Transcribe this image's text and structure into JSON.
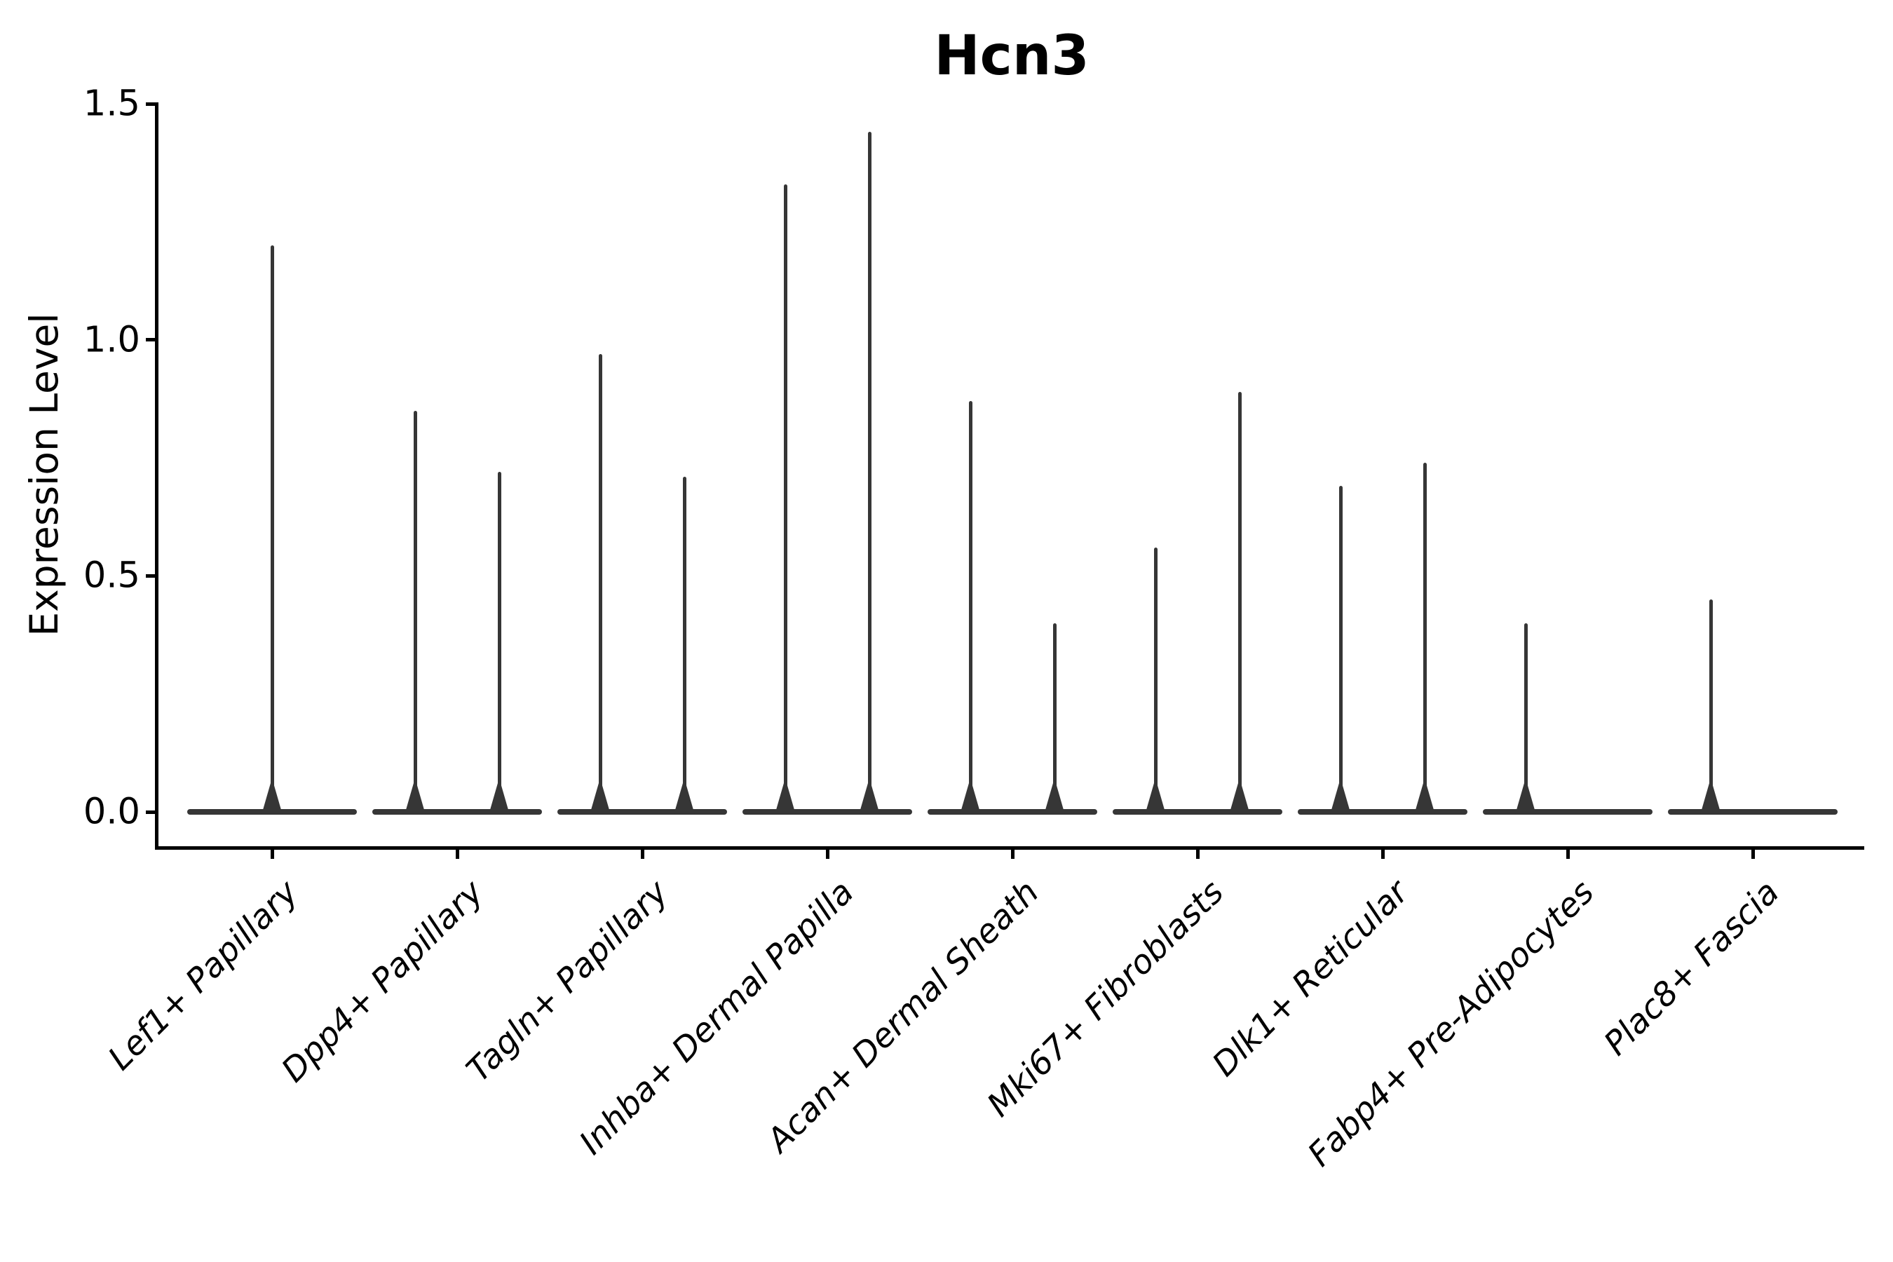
{
  "figure": {
    "title": "Hcn3",
    "ylabel": "Expression Level"
  },
  "chart_data": {
    "type": "violin",
    "title": "Hcn3",
    "xlabel": "",
    "ylabel": "Expression Level",
    "ylim": [
      -0.08,
      1.57
    ],
    "yticks_labels": [
      "0.0",
      "0.5",
      "1.0",
      "1.5"
    ],
    "ytick_values": [
      0.0,
      0.5,
      1.0,
      1.5
    ],
    "grid": false,
    "legend": null,
    "background": "#ffffff",
    "axis_color": "#000000",
    "violin_color": "#363636",
    "shape_note": "single-cell expression violins: each cluster collapses to a flat bar at 0 with thin vertical density spikes rising to the max expression value; clusters 2-7 show two side-by-side sub-violins (left/right spikes), clusters 1, 8, 9 show one spike",
    "categories": [
      "Lef1+ Papillary",
      "Dpp4+ Papillary",
      "Tagln+ Papillary",
      "Inhba+ Dermal Papilla",
      "Acan+ Dermal Sheath",
      "Mki67+ Fibroblasts",
      "Dlk1+ Reticular",
      "Fabp4+ Pre-Adipocytes",
      "Plac8+ Fascia"
    ],
    "violins": [
      {
        "category": "Lef1+ Papillary",
        "spikes": [
          {
            "pos": "center",
            "max": 1.2
          }
        ]
      },
      {
        "category": "Dpp4+ Papillary",
        "spikes": [
          {
            "pos": "left",
            "max": 0.85
          },
          {
            "pos": "right",
            "max": 0.72
          }
        ]
      },
      {
        "category": "Tagln+ Papillary",
        "spikes": [
          {
            "pos": "left",
            "max": 0.97
          },
          {
            "pos": "right",
            "max": 0.71
          }
        ]
      },
      {
        "category": "Inhba+ Dermal Papilla",
        "spikes": [
          {
            "pos": "left",
            "max": 1.33
          },
          {
            "pos": "right",
            "max": 1.44
          }
        ]
      },
      {
        "category": "Acan+ Dermal Sheath",
        "spikes": [
          {
            "pos": "left",
            "max": 0.87
          },
          {
            "pos": "right",
            "max": 0.4
          }
        ]
      },
      {
        "category": "Mki67+ Fibroblasts",
        "spikes": [
          {
            "pos": "left",
            "max": 0.56
          },
          {
            "pos": "right",
            "max": 0.89
          }
        ]
      },
      {
        "category": "Dlk1+ Reticular",
        "spikes": [
          {
            "pos": "left",
            "max": 0.69
          },
          {
            "pos": "right",
            "max": 0.74
          }
        ]
      },
      {
        "category": "Fabp4+ Pre-Adipocytes",
        "spikes": [
          {
            "pos": "left",
            "max": 0.4
          }
        ]
      },
      {
        "category": "Plac8+ Fascia",
        "spikes": [
          {
            "pos": "left",
            "max": 0.45
          }
        ]
      }
    ]
  }
}
